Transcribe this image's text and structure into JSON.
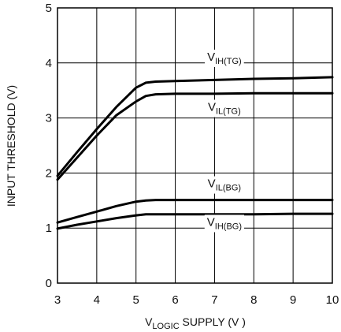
{
  "chart_data": {
    "type": "line",
    "xlabel": {
      "prefix": "V",
      "sub": "LOGIC",
      "suffix": " SUPPLY (V )"
    },
    "ylabel": "INPUT THRESHOLD (V)",
    "xlim": [
      3,
      10
    ],
    "ylim": [
      0,
      5
    ],
    "xticks": [
      "3",
      "4",
      "5",
      "6",
      "7",
      "8",
      "9",
      "10"
    ],
    "yticks": [
      "0",
      "1",
      "2",
      "3",
      "4",
      "5"
    ],
    "grid": true,
    "series": [
      {
        "name": "V_IH(TG)",
        "label_main": "V",
        "label_sub": "IH(TG)",
        "x": [
          3,
          3.5,
          4,
          4.5,
          5,
          5.25,
          5.5,
          6,
          7,
          8,
          9,
          10
        ],
        "y": [
          1.95,
          2.38,
          2.8,
          3.2,
          3.55,
          3.64,
          3.66,
          3.67,
          3.69,
          3.71,
          3.72,
          3.74
        ]
      },
      {
        "name": "V_IL(TG)",
        "label_main": "V",
        "label_sub": "IL(TG)",
        "x": [
          3,
          3.5,
          4,
          4.5,
          5,
          5.25,
          5.5,
          6,
          7,
          8,
          9,
          10
        ],
        "y": [
          1.88,
          2.28,
          2.68,
          3.05,
          3.3,
          3.4,
          3.43,
          3.44,
          3.44,
          3.45,
          3.45,
          3.45
        ]
      },
      {
        "name": "V_IL(BG)",
        "label_main": "V",
        "label_sub": "IL(BG)",
        "x": [
          3,
          3.5,
          4,
          4.5,
          5,
          5.25,
          5.5,
          6,
          7,
          8,
          9,
          10
        ],
        "y": [
          1.1,
          1.2,
          1.3,
          1.4,
          1.48,
          1.5,
          1.51,
          1.51,
          1.51,
          1.51,
          1.51,
          1.51
        ]
      },
      {
        "name": "V_IH(BG)",
        "label_main": "V",
        "label_sub": "IH(BG)",
        "x": [
          3,
          3.5,
          4,
          4.5,
          5,
          5.25,
          5.5,
          6,
          7,
          8,
          9,
          10
        ],
        "y": [
          0.99,
          1.06,
          1.12,
          1.18,
          1.23,
          1.25,
          1.25,
          1.25,
          1.25,
          1.25,
          1.26,
          1.26
        ]
      }
    ],
    "annotations": [
      {
        "series": 0,
        "x": 7.25,
        "y": 4.04
      },
      {
        "series": 1,
        "x": 7.25,
        "y": 3.13
      },
      {
        "series": 2,
        "x": 7.25,
        "y": 1.74
      },
      {
        "series": 3,
        "x": 7.25,
        "y": 1.04
      }
    ]
  }
}
